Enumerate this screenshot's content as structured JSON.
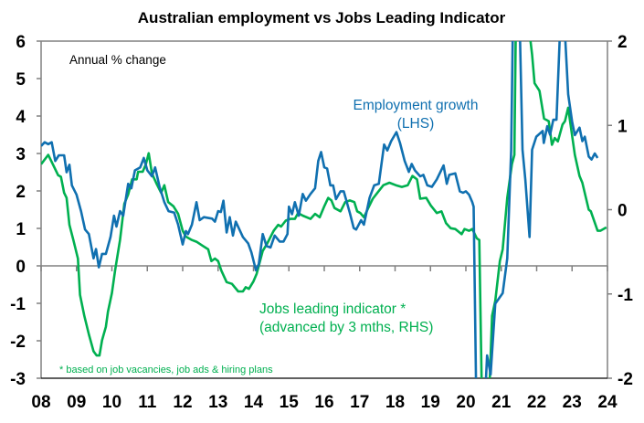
{
  "chart_data": {
    "type": "line",
    "title": "Australian employment vs Jobs Leading Indicator",
    "unit_label": "Annual % change",
    "footnote": "* based on job vacancies, job ads & hiring plans",
    "x_tick_labels": [
      "08",
      "09",
      "10",
      "11",
      "12",
      "13",
      "14",
      "15",
      "16",
      "17",
      "18",
      "19",
      "20",
      "21",
      "22",
      "23",
      "24"
    ],
    "xlim": [
      2008,
      2024
    ],
    "y_left": {
      "lim": [
        -3,
        6
      ],
      "ticks": [
        "-3",
        "-2",
        "-1",
        "0",
        "1",
        "2",
        "3",
        "4",
        "5",
        "6"
      ]
    },
    "y_right": {
      "lim": [
        -2,
        2
      ],
      "ticks": [
        "-2",
        "-1",
        "0",
        "1",
        "2"
      ]
    },
    "grid": false,
    "colors": {
      "employment": "#1070b0",
      "indicator": "#00b050",
      "axis": "#808080"
    },
    "series": [
      {
        "name": "Employment growth",
        "label_line1": "Employment growth",
        "label_line2": "(LHS)",
        "axis": "left",
        "points": [
          [
            2008.0,
            3.2
          ],
          [
            2008.1,
            3.3
          ],
          [
            2008.2,
            3.25
          ],
          [
            2008.3,
            3.3
          ],
          [
            2008.4,
            2.8
          ],
          [
            2008.5,
            2.95
          ],
          [
            2008.65,
            2.95
          ],
          [
            2008.72,
            2.5
          ],
          [
            2008.8,
            2.7
          ],
          [
            2008.87,
            2.15
          ],
          [
            2009.0,
            1.9
          ],
          [
            2009.13,
            1.45
          ],
          [
            2009.24,
            0.97
          ],
          [
            2009.35,
            0.85
          ],
          [
            2009.48,
            0.2
          ],
          [
            2009.55,
            0.45
          ],
          [
            2009.63,
            -0.04
          ],
          [
            2009.72,
            0.32
          ],
          [
            2009.83,
            0.32
          ],
          [
            2009.96,
            0.77
          ],
          [
            2010.06,
            1.34
          ],
          [
            2010.13,
            1.05
          ],
          [
            2010.23,
            1.46
          ],
          [
            2010.32,
            1.34
          ],
          [
            2010.46,
            2.19
          ],
          [
            2010.55,
            2.07
          ],
          [
            2010.65,
            2.55
          ],
          [
            2010.8,
            2.63
          ],
          [
            2010.9,
            2.88
          ],
          [
            2011.0,
            2.55
          ],
          [
            2011.13,
            2.39
          ],
          [
            2011.22,
            2.63
          ],
          [
            2011.35,
            2.1
          ],
          [
            2011.48,
            1.7
          ],
          [
            2011.6,
            1.46
          ],
          [
            2011.76,
            1.42
          ],
          [
            2011.87,
            1.1
          ],
          [
            2012.0,
            0.57
          ],
          [
            2012.09,
            0.93
          ],
          [
            2012.15,
            0.85
          ],
          [
            2012.26,
            1.1
          ],
          [
            2012.39,
            1.7
          ],
          [
            2012.48,
            1.22
          ],
          [
            2012.6,
            1.3
          ],
          [
            2012.83,
            1.26
          ],
          [
            2012.91,
            1.18
          ],
          [
            2013.0,
            1.46
          ],
          [
            2013.08,
            1.44
          ],
          [
            2013.15,
            1.74
          ],
          [
            2013.24,
            0.89
          ],
          [
            2013.33,
            1.3
          ],
          [
            2013.42,
            0.81
          ],
          [
            2013.5,
            1.18
          ],
          [
            2013.7,
            0.77
          ],
          [
            2013.85,
            0.6
          ],
          [
            2013.94,
            0.36
          ],
          [
            2014.07,
            -0.12
          ],
          [
            2014.15,
            0.05
          ],
          [
            2014.26,
            0.85
          ],
          [
            2014.37,
            0.53
          ],
          [
            2014.48,
            0.49
          ],
          [
            2014.6,
            0.81
          ],
          [
            2014.74,
            0.65
          ],
          [
            2014.85,
            0.65
          ],
          [
            2014.96,
            0.85
          ],
          [
            2015.0,
            1.58
          ],
          [
            2015.09,
            1.38
          ],
          [
            2015.17,
            1.7
          ],
          [
            2015.28,
            1.34
          ],
          [
            2015.39,
            1.92
          ],
          [
            2015.48,
            1.74
          ],
          [
            2015.61,
            1.92
          ],
          [
            2015.74,
            2.07
          ],
          [
            2015.83,
            2.8
          ],
          [
            2015.91,
            3.04
          ],
          [
            2016.0,
            2.63
          ],
          [
            2016.08,
            2.6
          ],
          [
            2016.17,
            2.15
          ],
          [
            2016.25,
            2.15
          ],
          [
            2016.33,
            1.78
          ],
          [
            2016.46,
            1.99
          ],
          [
            2016.55,
            1.99
          ],
          [
            2016.72,
            1.42
          ],
          [
            2016.83,
            1.01
          ],
          [
            2016.9,
            0.97
          ],
          [
            2017.04,
            1.22
          ],
          [
            2017.12,
            1.1
          ],
          [
            2017.28,
            1.82
          ],
          [
            2017.41,
            2.15
          ],
          [
            2017.54,
            2.19
          ],
          [
            2017.69,
            3.24
          ],
          [
            2017.78,
            3.08
          ],
          [
            2017.89,
            3.33
          ],
          [
            2018.04,
            3.57
          ],
          [
            2018.14,
            3.28
          ],
          [
            2018.27,
            2.8
          ],
          [
            2018.39,
            2.51
          ],
          [
            2018.47,
            2.72
          ],
          [
            2018.56,
            2.55
          ],
          [
            2018.71,
            2.39
          ],
          [
            2018.8,
            2.43
          ],
          [
            2018.91,
            2.15
          ],
          [
            2019.04,
            2.11
          ],
          [
            2019.18,
            2.31
          ],
          [
            2019.37,
            2.68
          ],
          [
            2019.46,
            2.19
          ],
          [
            2019.53,
            2.43
          ],
          [
            2019.7,
            2.47
          ],
          [
            2019.83,
            1.99
          ],
          [
            2019.92,
            1.95
          ],
          [
            2020.0,
            1.99
          ],
          [
            2020.09,
            1.9
          ],
          [
            2020.18,
            1.7
          ],
          [
            2020.22,
            1.58
          ],
          [
            2020.3,
            -4.0
          ],
          [
            2020.45,
            -4.3
          ],
          [
            2020.55,
            -3.4
          ],
          [
            2020.6,
            -2.39
          ],
          [
            2020.7,
            -2.9
          ],
          [
            2020.83,
            -1.01
          ],
          [
            2021.04,
            -0.73
          ],
          [
            2021.17,
            0.2
          ],
          [
            2021.28,
            3.1
          ],
          [
            2021.33,
            6.5
          ],
          [
            2021.42,
            7.4
          ],
          [
            2021.52,
            6.5
          ],
          [
            2021.6,
            3.1
          ],
          [
            2021.68,
            2.3
          ],
          [
            2021.8,
            0.77
          ],
          [
            2021.87,
            3.1
          ],
          [
            2021.99,
            3.45
          ],
          [
            2022.17,
            3.6
          ],
          [
            2022.2,
            3.28
          ],
          [
            2022.3,
            3.73
          ],
          [
            2022.38,
            3.5
          ],
          [
            2022.47,
            3.9
          ],
          [
            2022.56,
            3.9
          ],
          [
            2022.66,
            6.3
          ],
          [
            2022.72,
            6.6
          ],
          [
            2022.8,
            6.2
          ],
          [
            2022.89,
            4.58
          ],
          [
            2023.0,
            3.85
          ],
          [
            2023.08,
            3.49
          ],
          [
            2023.21,
            3.69
          ],
          [
            2023.29,
            3.33
          ],
          [
            2023.36,
            3.45
          ],
          [
            2023.47,
            2.92
          ],
          [
            2023.55,
            2.84
          ],
          [
            2023.64,
            3.0
          ],
          [
            2023.72,
            2.88
          ]
        ]
      },
      {
        "name": "Jobs leading indicator *",
        "label_line1": "Jobs leading indicator *",
        "label_line2": "(advanced by 3 mths, RHS)",
        "axis": "right",
        "points": [
          [
            2008.0,
            0.54
          ],
          [
            2008.04,
            0.56
          ],
          [
            2008.2,
            0.65
          ],
          [
            2008.33,
            0.54
          ],
          [
            2008.48,
            0.41
          ],
          [
            2008.56,
            0.39
          ],
          [
            2008.65,
            0.2
          ],
          [
            2008.72,
            0.14
          ],
          [
            2008.8,
            -0.18
          ],
          [
            2008.91,
            -0.36
          ],
          [
            2009.04,
            -0.58
          ],
          [
            2009.1,
            -1.01
          ],
          [
            2009.22,
            -1.26
          ],
          [
            2009.35,
            -1.48
          ],
          [
            2009.48,
            -1.68
          ],
          [
            2009.57,
            -1.73
          ],
          [
            2009.65,
            -1.73
          ],
          [
            2009.72,
            -1.55
          ],
          [
            2009.83,
            -1.39
          ],
          [
            2009.89,
            -1.21
          ],
          [
            2010.0,
            -0.99
          ],
          [
            2010.09,
            -0.72
          ],
          [
            2010.23,
            -0.36
          ],
          [
            2010.35,
            0.07
          ],
          [
            2010.46,
            0.18
          ],
          [
            2010.57,
            0.36
          ],
          [
            2010.7,
            0.36
          ],
          [
            2010.74,
            0.45
          ],
          [
            2010.87,
            0.45
          ],
          [
            2010.96,
            0.54
          ],
          [
            2011.04,
            0.67
          ],
          [
            2011.13,
            0.43
          ],
          [
            2011.26,
            0.31
          ],
          [
            2011.39,
            0.2
          ],
          [
            2011.48,
            0.29
          ],
          [
            2011.59,
            0.09
          ],
          [
            2011.74,
            0.04
          ],
          [
            2011.87,
            -0.05
          ],
          [
            2012.0,
            -0.25
          ],
          [
            2012.09,
            -0.32
          ],
          [
            2012.26,
            -0.36
          ],
          [
            2012.39,
            -0.38
          ],
          [
            2012.57,
            -0.43
          ],
          [
            2012.72,
            -0.47
          ],
          [
            2012.81,
            -0.61
          ],
          [
            2012.91,
            -0.58
          ],
          [
            2013.0,
            -0.61
          ],
          [
            2013.09,
            -0.72
          ],
          [
            2013.24,
            -0.86
          ],
          [
            2013.39,
            -0.88
          ],
          [
            2013.57,
            -0.97
          ],
          [
            2013.7,
            -0.97
          ],
          [
            2013.78,
            -0.92
          ],
          [
            2013.87,
            -0.94
          ],
          [
            2014.0,
            -0.85
          ],
          [
            2014.09,
            -0.76
          ],
          [
            2014.26,
            -0.49
          ],
          [
            2014.39,
            -0.4
          ],
          [
            2014.57,
            -0.25
          ],
          [
            2014.7,
            -0.18
          ],
          [
            2014.78,
            -0.2
          ],
          [
            2014.91,
            -0.13
          ],
          [
            2015.04,
            -0.11
          ],
          [
            2015.17,
            -0.11
          ],
          [
            2015.26,
            -0.04
          ],
          [
            2015.39,
            -0.07
          ],
          [
            2015.61,
            -0.11
          ],
          [
            2015.74,
            -0.05
          ],
          [
            2015.87,
            -0.09
          ],
          [
            2016.0,
            0.04
          ],
          [
            2016.11,
            0.14
          ],
          [
            2016.2,
            0.11
          ],
          [
            2016.29,
            0.02
          ],
          [
            2016.46,
            -0.02
          ],
          [
            2016.59,
            0.09
          ],
          [
            2016.72,
            0.11
          ],
          [
            2016.85,
            0.09
          ],
          [
            2016.93,
            -0.02
          ],
          [
            2017.02,
            -0.04
          ],
          [
            2017.12,
            -0.09
          ],
          [
            2017.24,
            0.02
          ],
          [
            2017.37,
            0.13
          ],
          [
            2017.5,
            0.2
          ],
          [
            2017.67,
            0.29
          ],
          [
            2017.84,
            0.32
          ],
          [
            2018.02,
            0.29
          ],
          [
            2018.19,
            0.27
          ],
          [
            2018.36,
            0.29
          ],
          [
            2018.49,
            0.4
          ],
          [
            2018.62,
            0.36
          ],
          [
            2018.71,
            0.13
          ],
          [
            2018.88,
            0.14
          ],
          [
            2019.01,
            0.05
          ],
          [
            2019.18,
            -0.04
          ],
          [
            2019.31,
            -0.02
          ],
          [
            2019.44,
            -0.16
          ],
          [
            2019.57,
            -0.22
          ],
          [
            2019.7,
            -0.23
          ],
          [
            2019.88,
            -0.29
          ],
          [
            2019.96,
            -0.23
          ],
          [
            2020.09,
            -0.25
          ],
          [
            2020.18,
            -0.23
          ],
          [
            2020.31,
            -0.34
          ],
          [
            2020.38,
            -0.36
          ],
          [
            2020.46,
            -2.4
          ],
          [
            2020.56,
            -2.5
          ],
          [
            2020.65,
            -2.3
          ],
          [
            2020.74,
            -1.26
          ],
          [
            2020.83,
            -1.08
          ],
          [
            2020.96,
            -0.61
          ],
          [
            2021.04,
            -0.47
          ],
          [
            2021.17,
            0.14
          ],
          [
            2021.3,
            0.54
          ],
          [
            2021.37,
            0.65
          ],
          [
            2021.41,
            2.1
          ],
          [
            2021.6,
            2.6
          ],
          [
            2021.8,
            2.1
          ],
          [
            2021.87,
            1.84
          ],
          [
            2021.94,
            1.5
          ],
          [
            2022.08,
            1.41
          ],
          [
            2022.21,
            1.08
          ],
          [
            2022.34,
            1.05
          ],
          [
            2022.43,
            0.77
          ],
          [
            2022.51,
            0.85
          ],
          [
            2022.6,
            0.81
          ],
          [
            2022.73,
            1.01
          ],
          [
            2022.8,
            1.05
          ],
          [
            2022.89,
            1.21
          ],
          [
            2022.97,
            0.97
          ],
          [
            2023.08,
            0.65
          ],
          [
            2023.21,
            0.4
          ],
          [
            2023.29,
            0.32
          ],
          [
            2023.47,
            0.0
          ],
          [
            2023.53,
            -0.02
          ],
          [
            2023.72,
            -0.25
          ],
          [
            2023.8,
            -0.25
          ],
          [
            2023.97,
            -0.21
          ]
        ]
      }
    ]
  }
}
